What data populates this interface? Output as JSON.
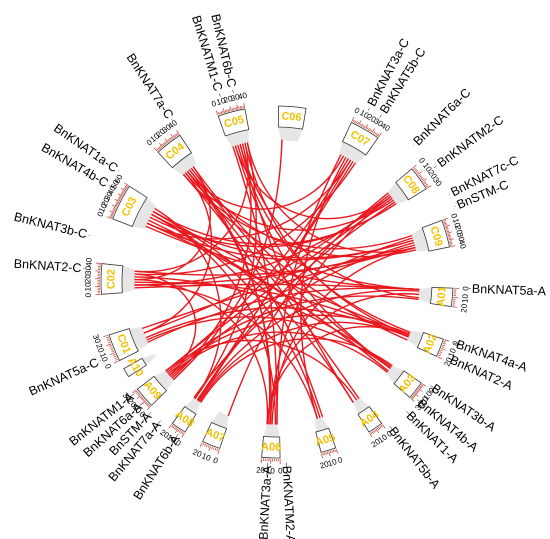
{
  "colors": {
    "chromosome_text": "#f2c200",
    "link": "#e8191f",
    "tick": "#c0392b",
    "fan": "#e6e6e6"
  },
  "chromosomes": [
    {
      "id": "C01",
      "ticks": [
        0,
        10,
        20,
        30
      ]
    },
    {
      "id": "C02",
      "ticks": [
        0,
        10,
        20,
        30,
        40
      ]
    },
    {
      "id": "C03",
      "ticks": [
        0,
        10,
        20,
        30,
        40,
        50,
        60
      ]
    },
    {
      "id": "C04",
      "ticks": [
        0,
        10,
        20,
        30,
        40
      ]
    },
    {
      "id": "C05",
      "ticks": [
        0,
        10,
        20,
        30,
        40
      ]
    },
    {
      "id": "C06",
      "ticks": []
    },
    {
      "id": "C07",
      "ticks": [
        0,
        10,
        20,
        30,
        40
      ]
    },
    {
      "id": "C08",
      "ticks": [
        0,
        10,
        20,
        30
      ]
    },
    {
      "id": "C09",
      "ticks": [
        0,
        10,
        20,
        30,
        40
      ]
    },
    {
      "id": "A01",
      "ticks": [
        0,
        10,
        20
      ]
    },
    {
      "id": "A02",
      "ticks": [
        0,
        10,
        20
      ]
    },
    {
      "id": "A03",
      "ticks": [
        0,
        10,
        20,
        30
      ]
    },
    {
      "id": "A04",
      "ticks": [
        0,
        10,
        20
      ]
    },
    {
      "id": "A05",
      "ticks": [
        0,
        10,
        20
      ]
    },
    {
      "id": "A06",
      "ticks": [
        0,
        10,
        20
      ]
    },
    {
      "id": "A07",
      "ticks": [
        0,
        10,
        20
      ]
    },
    {
      "id": "A08",
      "ticks": [
        0,
        10,
        20
      ]
    },
    {
      "id": "A09",
      "ticks": [
        0,
        10,
        20,
        30
      ]
    },
    {
      "id": "A10",
      "ticks": []
    }
  ],
  "genes": [
    {
      "name": "BnKNAT5a-A",
      "chr": "A01"
    },
    {
      "name": "BnKNAT4a-A",
      "chr": "A02"
    },
    {
      "name": "BnKNAT2-A",
      "chr": "A02"
    },
    {
      "name": "BnKNAT3b-A",
      "chr": "A03"
    },
    {
      "name": "BnKNAT4b-A",
      "chr": "A03"
    },
    {
      "name": "BnKNAT1-A",
      "chr": "A03"
    },
    {
      "name": "BnKNAT5b-A",
      "chr": "A04"
    },
    {
      "name": "BnKNATM2-A",
      "chr": "A06"
    },
    {
      "name": "BnKNAT3a-A",
      "chr": "A06"
    },
    {
      "name": "BnKNAT6b-A",
      "chr": "A08"
    },
    {
      "name": "BnKNAT7a-A",
      "chr": "A09"
    },
    {
      "name": "BnSTM-A",
      "chr": "A09"
    },
    {
      "name": "BnKNAT6a-A",
      "chr": "A09"
    },
    {
      "name": "BnKNATM1-A",
      "chr": "A09"
    },
    {
      "name": "BnKNAT5a-C",
      "chr": "C01"
    },
    {
      "name": "BnKNAT2-C",
      "chr": "C02"
    },
    {
      "name": "BnKNAT3b-C",
      "chr": "C02"
    },
    {
      "name": "BnKNAT4b-C",
      "chr": "C03"
    },
    {
      "name": "BnKNAT1a-C",
      "chr": "C03"
    },
    {
      "name": "BnKNAT7a-C",
      "chr": "C04"
    },
    {
      "name": "BnKNATM1-C",
      "chr": "C05"
    },
    {
      "name": "BnKNAT6b-C",
      "chr": "C05"
    },
    {
      "name": "BnKNAT3a-C",
      "chr": "C07"
    },
    {
      "name": "BnKNAT5b-C",
      "chr": "C07"
    },
    {
      "name": "BnKNAT6a-C",
      "chr": "C08"
    },
    {
      "name": "BnKNATM2-C",
      "chr": "C08"
    },
    {
      "name": "BnKNAT7c-C",
      "chr": "C09"
    },
    {
      "name": "BnSTM-C",
      "chr": "C09"
    }
  ]
}
